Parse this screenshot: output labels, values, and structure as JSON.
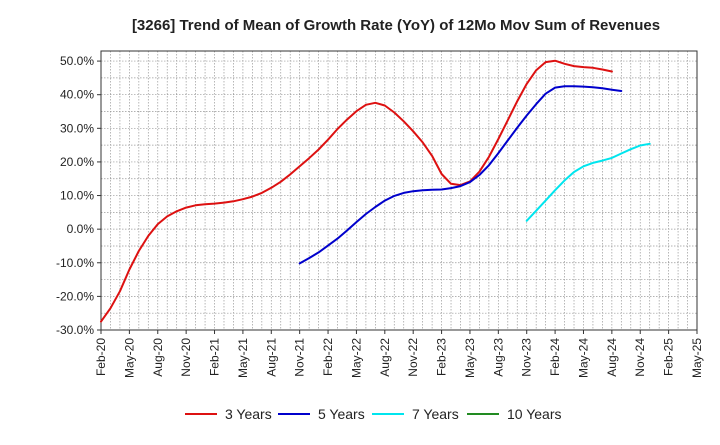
{
  "chart_data": {
    "type": "line",
    "title": "[3266]  Trend of Mean of Growth Rate (YoY) of 12Mo Mov Sum of Revenues",
    "xlabel": "",
    "ylabel": "",
    "ylim": [
      -30,
      53
    ],
    "y_ticks": [
      50,
      40,
      30,
      20,
      10,
      0,
      -10,
      -20,
      -30
    ],
    "y_tick_labels": [
      "50.0%",
      "40.0%",
      "30.0%",
      "20.0%",
      "10.0%",
      "0.0%",
      "-10.0%",
      "-20.0%",
      "-30.0%"
    ],
    "x_tick_labels": [
      "Feb-20",
      "May-20",
      "Aug-20",
      "Nov-20",
      "Feb-21",
      "May-21",
      "Aug-21",
      "Nov-21",
      "Feb-22",
      "May-22",
      "Aug-22",
      "Nov-22",
      "Feb-23",
      "May-23",
      "Aug-23",
      "Nov-23",
      "Feb-24",
      "May-24",
      "Aug-24",
      "Nov-24",
      "Feb-25",
      "May-25"
    ],
    "grid": true,
    "legend_position": "bottom",
    "series": [
      {
        "name": "3 Years",
        "color": "#dd1111",
        "start_index": 0,
        "values": [
          -27.5,
          -23.5,
          -18.5,
          -12,
          -6.5,
          -2,
          1.5,
          3.8,
          5.3,
          6.4,
          7.1,
          7.4,
          7.6,
          7.9,
          8.3,
          8.9,
          9.7,
          10.8,
          12.3,
          14.1,
          16.3,
          18.7,
          21.1,
          23.7,
          26.6,
          29.8,
          32.6,
          35.1,
          37,
          37.6,
          36.8,
          34.7,
          32.1,
          29.1,
          25.8,
          21.8,
          16.4,
          13.5,
          13.1,
          14.2,
          17.1,
          21.5,
          26.8,
          32.4,
          38.1,
          43.2,
          47.3,
          49.7,
          50.1,
          49.2,
          48.5,
          48.2,
          48,
          47.5,
          46.9
        ]
      },
      {
        "name": "5 Years",
        "color": "#0000cc",
        "start_index": 21,
        "values": [
          -10.2,
          -8.6,
          -6.9,
          -4.9,
          -2.8,
          -0.4,
          2.1,
          4.5,
          6.6,
          8.5,
          9.9,
          10.8,
          11.3,
          11.6,
          11.7,
          11.8,
          12.2,
          12.8,
          14,
          16.1,
          19,
          22.6,
          26.4,
          30.2,
          33.8,
          37.2,
          40.3,
          42.1,
          42.5,
          42.5,
          42.4,
          42.2,
          41.9,
          41.5,
          41.1
        ]
      },
      {
        "name": "7 Years",
        "color": "#00e5ee",
        "start_index": 45,
        "values": [
          2.5,
          5.5,
          8.5,
          11.6,
          14.5,
          17,
          18.7,
          19.7,
          20.4,
          21.2,
          22.5,
          23.8,
          24.9,
          25.4
        ]
      },
      {
        "name": "10 Years",
        "color": "#228b22",
        "start_index": 0,
        "values": []
      }
    ]
  }
}
